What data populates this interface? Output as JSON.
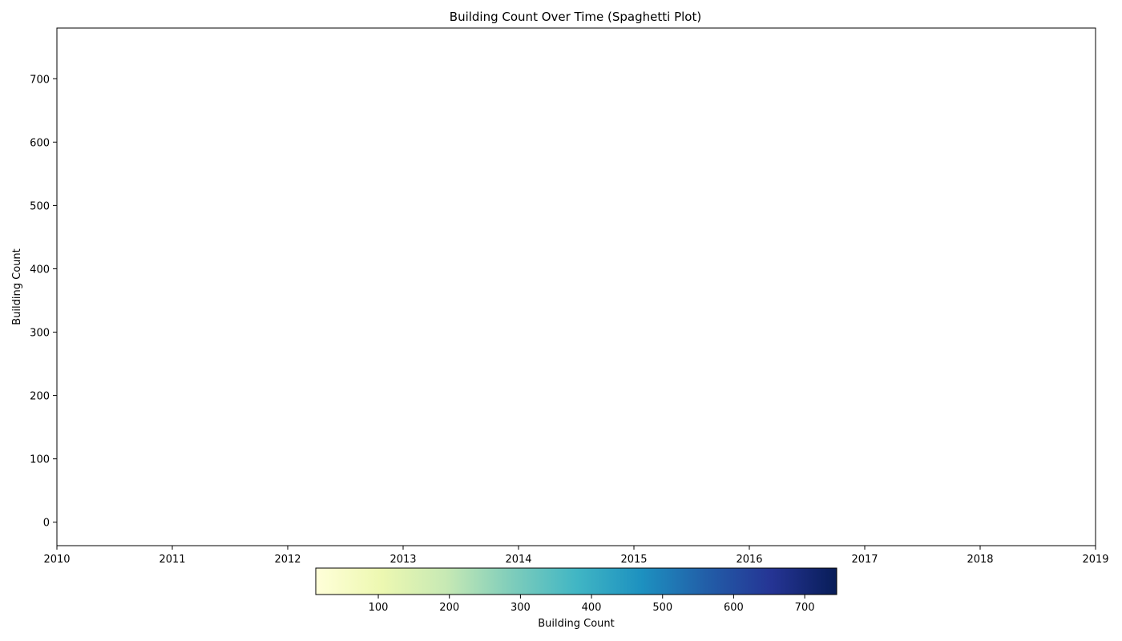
{
  "chart_data": {
    "type": "line",
    "title": "Building Count Over Time (Spaghetti Plot)",
    "xlabel": "",
    "ylabel": "Building Count",
    "xlim": [
      2010,
      2019
    ],
    "ylim": [
      -37,
      780
    ],
    "x_ticks": [
      "2010",
      "2011",
      "2012",
      "2013",
      "2014",
      "2015",
      "2016",
      "2017",
      "2018",
      "2019"
    ],
    "y_ticks": [
      0,
      100,
      200,
      300,
      400,
      500,
      600,
      700
    ],
    "series": [],
    "grid": false,
    "colorbar": {
      "label": "Building Count",
      "colormap": "YlGnBu",
      "orientation": "horizontal",
      "placement": "bottom",
      "range": [
        12,
        745
      ],
      "ticks": [
        100,
        200,
        300,
        400,
        500,
        600,
        700
      ],
      "colors": [
        "#ffffd9",
        "#edf8b1",
        "#c7e9b4",
        "#7fcdbb",
        "#41b6c4",
        "#1d91c0",
        "#225ea8",
        "#253494",
        "#081d58"
      ]
    }
  }
}
